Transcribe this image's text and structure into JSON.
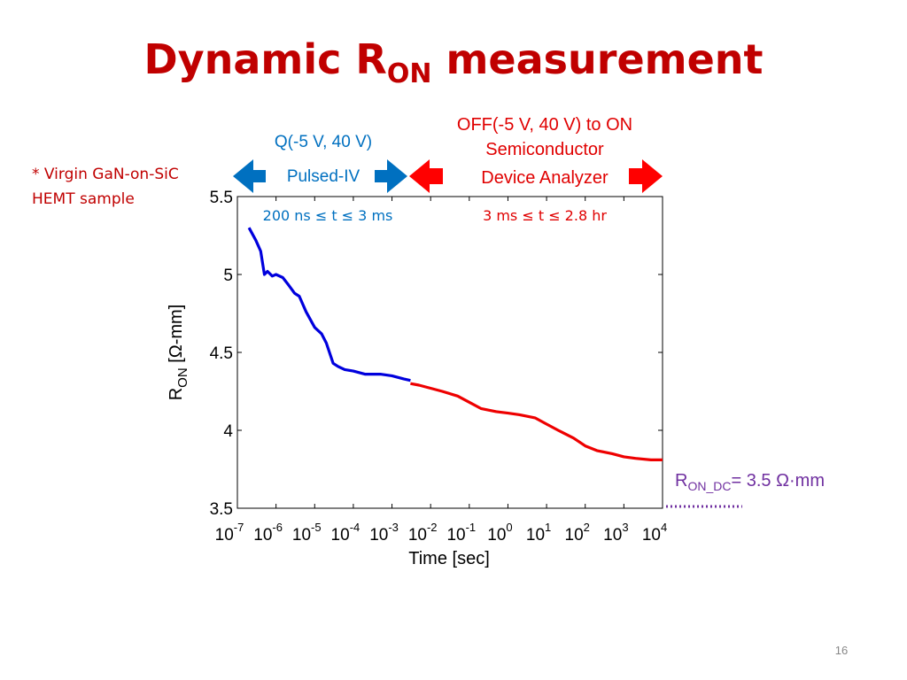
{
  "slide": {
    "title_main": "Dynamic R",
    "title_sub": "ON",
    "title_rest": " measurement",
    "page_number": "16"
  },
  "notes": {
    "sample": "* Virgin GaN-on-SiC HEMT sample"
  },
  "annotations": {
    "blue_line1": "Q(-5 V, 40 V)",
    "blue_line2": "Pulsed-IV",
    "red_line1": "OFF(-5 V, 40 V) to ON",
    "red_line2": "Semiconductor",
    "red_line3": "Device Analyzer",
    "blue_range": "200 ns ≤ t ≤ 3 ms",
    "red_range": "3 ms ≤ t ≤ 2.8 hr",
    "ron_dc_main": "R",
    "ron_dc_sub": "ON_DC",
    "ron_dc_value": "= 3.5 Ω·mm"
  },
  "colors": {
    "title": "#c00000",
    "blue_series": "#0000dd",
    "red_series": "#ee0000",
    "blue_arrow": "#0070c0",
    "red_arrow": "#ff0000",
    "ron_dc": "#7030a0"
  },
  "chart_data": {
    "type": "line",
    "xscale": "log",
    "xlim": [
      1e-07,
      10000
    ],
    "ylim": [
      3.5,
      5.5
    ],
    "xlabel": "Time [sec]",
    "ylabel_main": "R",
    "ylabel_sub": "ON",
    "ylabel_rest": " [Ω-mm]",
    "yticks": [
      "3.5",
      "4",
      "4.5",
      "5",
      "5.5"
    ],
    "xtick_exponents": [
      "-7",
      "-6",
      "-5",
      "-4",
      "-3",
      "-2",
      "-1",
      "0",
      "1",
      "2",
      "3",
      "4"
    ],
    "xtick_base": "10",
    "reference_value": 3.5,
    "series": [
      {
        "color": "blue",
        "x": [
          2e-07,
          3e-07,
          4e-07,
          5e-07,
          6e-07,
          8e-07,
          1e-06,
          1.5e-06,
          2e-06,
          3e-06,
          4e-06,
          6e-06,
          1e-05,
          1.5e-05,
          2e-05,
          3e-05,
          4e-05,
          6e-05,
          0.0001,
          0.0002,
          0.0005,
          0.001,
          0.002,
          0.003
        ],
        "y": [
          5.3,
          5.22,
          5.15,
          5.0,
          5.02,
          4.99,
          5.0,
          4.98,
          4.94,
          4.88,
          4.86,
          4.76,
          4.66,
          4.62,
          4.56,
          4.43,
          4.41,
          4.39,
          4.38,
          4.36,
          4.36,
          4.35,
          4.33,
          4.32
        ]
      },
      {
        "color": "red",
        "x": [
          0.003,
          0.005,
          0.01,
          0.02,
          0.05,
          0.1,
          0.2,
          0.5,
          1,
          2,
          5,
          10,
          20,
          50,
          100,
          200,
          500,
          1000,
          2000,
          5000,
          10000
        ],
        "y": [
          4.3,
          4.29,
          4.27,
          4.25,
          4.22,
          4.18,
          4.14,
          4.12,
          4.11,
          4.1,
          4.08,
          4.04,
          4.0,
          3.95,
          3.9,
          3.87,
          3.85,
          3.83,
          3.82,
          3.81,
          3.81
        ]
      }
    ]
  }
}
